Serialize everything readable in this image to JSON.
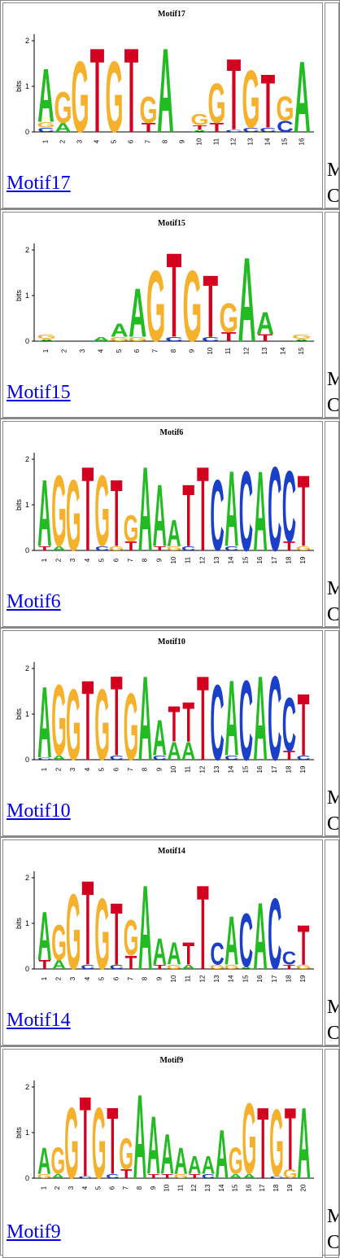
{
  "colors": {
    "A": "#22bb22",
    "C": "#1a3fc9",
    "G": "#f6b12c",
    "T": "#d40020"
  },
  "right_fragment": {
    "line1": "M",
    "line2": "C"
  },
  "motifs": [
    {
      "title": "Motif17",
      "link": "Motif17",
      "positions": [
        [
          [
            "A",
            1.2
          ],
          [
            "G",
            0.12
          ],
          [
            "C",
            0.1
          ]
        ],
        [
          [
            "G",
            0.7
          ],
          [
            "A",
            0.2
          ]
        ],
        [
          [
            "G",
            1.6
          ]
        ],
        [
          [
            "T",
            1.9
          ]
        ],
        [
          [
            "G",
            1.6
          ]
        ],
        [
          [
            "T",
            1.9
          ]
        ],
        [
          [
            "G",
            0.6
          ],
          [
            "T",
            0.2
          ]
        ],
        [
          [
            "A",
            1.9
          ]
        ],
        [],
        [
          [
            "G",
            0.25
          ],
          [
            "T",
            0.1
          ],
          [
            "A",
            0.05
          ]
        ],
        [
          [
            "G",
            0.9
          ],
          [
            "T",
            0.2
          ]
        ],
        [
          [
            "T",
            1.6
          ],
          [
            "C",
            0.05
          ]
        ],
        [
          [
            "G",
            1.3
          ],
          [
            "C",
            0.1
          ]
        ],
        [
          [
            "T",
            1.2
          ],
          [
            "C",
            0.1
          ]
        ],
        [
          [
            "G",
            0.55
          ],
          [
            "C",
            0.25
          ]
        ],
        [
          [
            "A",
            1.6
          ]
        ]
      ]
    },
    {
      "title": "Motif15",
      "link": "Motif15",
      "positions": [
        [
          [
            "G",
            0.1
          ],
          [
            "A",
            0.05
          ]
        ],
        [],
        [],
        [
          [
            "A",
            0.1
          ]
        ],
        [
          [
            "A",
            0.3
          ],
          [
            "G",
            0.1
          ]
        ],
        [
          [
            "A",
            1.1
          ],
          [
            "G",
            0.1
          ]
        ],
        [
          [
            "G",
            1.6
          ]
        ],
        [
          [
            "T",
            1.9
          ],
          [
            "C",
            0.1
          ]
        ],
        [
          [
            "G",
            1.6
          ]
        ],
        [
          [
            "T",
            1.4
          ],
          [
            "C",
            0.1
          ]
        ],
        [
          [
            "G",
            0.65
          ],
          [
            "T",
            0.2
          ]
        ],
        [
          [
            "A",
            1.9
          ]
        ],
        [
          [
            "A",
            0.5
          ],
          [
            "T",
            0.15
          ]
        ],
        [],
        [
          [
            "G",
            0.1
          ],
          [
            "A",
            0.05
          ]
        ]
      ]
    },
    {
      "title": "Motif6",
      "link": "Motif6",
      "positions": [
        [
          [
            "A",
            1.5
          ],
          [
            "T",
            0.1
          ]
        ],
        [
          [
            "G",
            1.6
          ],
          [
            "A",
            0.1
          ]
        ],
        [
          [
            "G",
            1.6
          ]
        ],
        [
          [
            "T",
            1.9
          ]
        ],
        [
          [
            "G",
            1.6
          ],
          [
            "C",
            0.1
          ]
        ],
        [
          [
            "T",
            1.5
          ],
          [
            "G",
            0.1
          ]
        ],
        [
          [
            "G",
            0.6
          ],
          [
            "T",
            0.2
          ]
        ],
        [
          [
            "A",
            1.9
          ]
        ],
        [
          [
            "A",
            1.4
          ],
          [
            "T",
            0.1
          ]
        ],
        [
          [
            "A",
            0.6
          ],
          [
            "G",
            0.1
          ]
        ],
        [
          [
            "T",
            1.4
          ],
          [
            "C",
            0.1
          ]
        ],
        [
          [
            "T",
            1.9
          ]
        ],
        [
          [
            "C",
            1.6
          ]
        ],
        [
          [
            "A",
            1.7
          ],
          [
            "C",
            0.1
          ]
        ],
        [
          [
            "C",
            1.8
          ]
        ],
        [
          [
            "A",
            1.8
          ]
        ],
        [
          [
            "C",
            1.9
          ]
        ],
        [
          [
            "C",
            1.6
          ],
          [
            "T",
            0.2
          ]
        ],
        [
          [
            "T",
            1.6
          ],
          [
            "G",
            0.1
          ]
        ]
      ]
    },
    {
      "title": "Motif10",
      "link": "Motif10",
      "positions": [
        [
          [
            "A",
            1.6
          ],
          [
            "C",
            0.05
          ]
        ],
        [
          [
            "G",
            1.6
          ],
          [
            "A",
            0.1
          ]
        ],
        [
          [
            "G",
            1.6
          ]
        ],
        [
          [
            "T",
            1.8
          ]
        ],
        [
          [
            "G",
            1.6
          ]
        ],
        [
          [
            "T",
            1.8
          ],
          [
            "C",
            0.1
          ]
        ],
        [
          [
            "G",
            1.5
          ]
        ],
        [
          [
            "A",
            1.9
          ]
        ],
        [
          [
            "A",
            0.8
          ],
          [
            "C",
            0.1
          ]
        ],
        [
          [
            "T",
            0.8
          ],
          [
            "A",
            0.4
          ]
        ],
        [
          [
            "T",
            0.9
          ],
          [
            "A",
            0.4
          ]
        ],
        [
          [
            "T",
            1.9
          ]
        ],
        [
          [
            "C",
            1.7
          ]
        ],
        [
          [
            "A",
            1.7
          ],
          [
            "C",
            0.1
          ]
        ],
        [
          [
            "C",
            1.8
          ]
        ],
        [
          [
            "A",
            1.9
          ]
        ],
        [
          [
            "C",
            1.9
          ]
        ],
        [
          [
            "C",
            1.2
          ],
          [
            "T",
            0.2
          ]
        ],
        [
          [
            "T",
            1.4
          ],
          [
            "C",
            0.1
          ]
        ]
      ]
    },
    {
      "title": "Motif14",
      "link": "Motif14",
      "positions": [
        [
          [
            "A",
            1.1
          ],
          [
            "T",
            0.2
          ]
        ],
        [
          [
            "G",
            0.8
          ],
          [
            "A",
            0.2
          ]
        ],
        [
          [
            "G",
            1.7
          ]
        ],
        [
          [
            "T",
            1.9
          ],
          [
            "C",
            0.1
          ]
        ],
        [
          [
            "G",
            1.6
          ]
        ],
        [
          [
            "T",
            1.4
          ],
          [
            "C",
            0.1
          ]
        ],
        [
          [
            "G",
            0.8
          ],
          [
            "T",
            0.3
          ]
        ],
        [
          [
            "A",
            1.9
          ]
        ],
        [
          [
            "A",
            0.6
          ],
          [
            "T",
            0.1
          ]
        ],
        [
          [
            "A",
            0.5
          ],
          [
            "G",
            0.1
          ]
        ],
        [
          [
            "T",
            0.5
          ],
          [
            "A",
            0.1
          ]
        ],
        [
          [
            "T",
            1.9
          ]
        ],
        [
          [
            "C",
            0.5
          ],
          [
            "G",
            0.1
          ]
        ],
        [
          [
            "A",
            1.1
          ],
          [
            "G",
            0.1
          ]
        ],
        [
          [
            "C",
            1.2
          ],
          [
            "A",
            0.05
          ]
        ],
        [
          [
            "A",
            1.5
          ]
        ],
        [
          [
            "C",
            1.6
          ]
        ],
        [
          [
            "C",
            0.3
          ],
          [
            "T",
            0.1
          ]
        ],
        [
          [
            "T",
            0.9
          ],
          [
            "G",
            0.1
          ]
        ]
      ]
    },
    {
      "title": "Motif9",
      "link": "Motif9",
      "positions": [
        [
          [
            "A",
            0.6
          ],
          [
            "G",
            0.1
          ]
        ],
        [
          [
            "G",
            0.6
          ],
          [
            "A",
            0.1
          ]
        ],
        [
          [
            "G",
            1.6
          ]
        ],
        [
          [
            "T",
            1.8
          ],
          [
            "C",
            0.05
          ]
        ],
        [
          [
            "G",
            1.6
          ]
        ],
        [
          [
            "T",
            1.5
          ],
          [
            "C",
            0.1
          ]
        ],
        [
          [
            "G",
            0.7
          ],
          [
            "T",
            0.2
          ]
        ],
        [
          [
            "A",
            1.9
          ]
        ],
        [
          [
            "A",
            1.3
          ],
          [
            "T",
            0.1
          ]
        ],
        [
          [
            "A",
            0.9
          ],
          [
            "T",
            0.1
          ]
        ],
        [
          [
            "A",
            0.6
          ],
          [
            "G",
            0.1
          ]
        ],
        [
          [
            "A",
            0.4
          ],
          [
            "T",
            0.1
          ]
        ],
        [
          [
            "A",
            0.4
          ],
          [
            "C",
            0.1
          ]
        ],
        [
          [
            "A",
            1.1
          ]
        ],
        [
          [
            "G",
            0.6
          ],
          [
            "A",
            0.1
          ]
        ],
        [
          [
            "G",
            1.6
          ],
          [
            "A",
            0.1
          ]
        ],
        [
          [
            "T",
            1.6
          ]
        ],
        [
          [
            "G",
            1.5
          ],
          [
            "C",
            0.05
          ]
        ],
        [
          [
            "T",
            1.4
          ],
          [
            "G",
            0.2
          ]
        ],
        [
          [
            "A",
            1.6
          ]
        ]
      ]
    }
  ]
}
